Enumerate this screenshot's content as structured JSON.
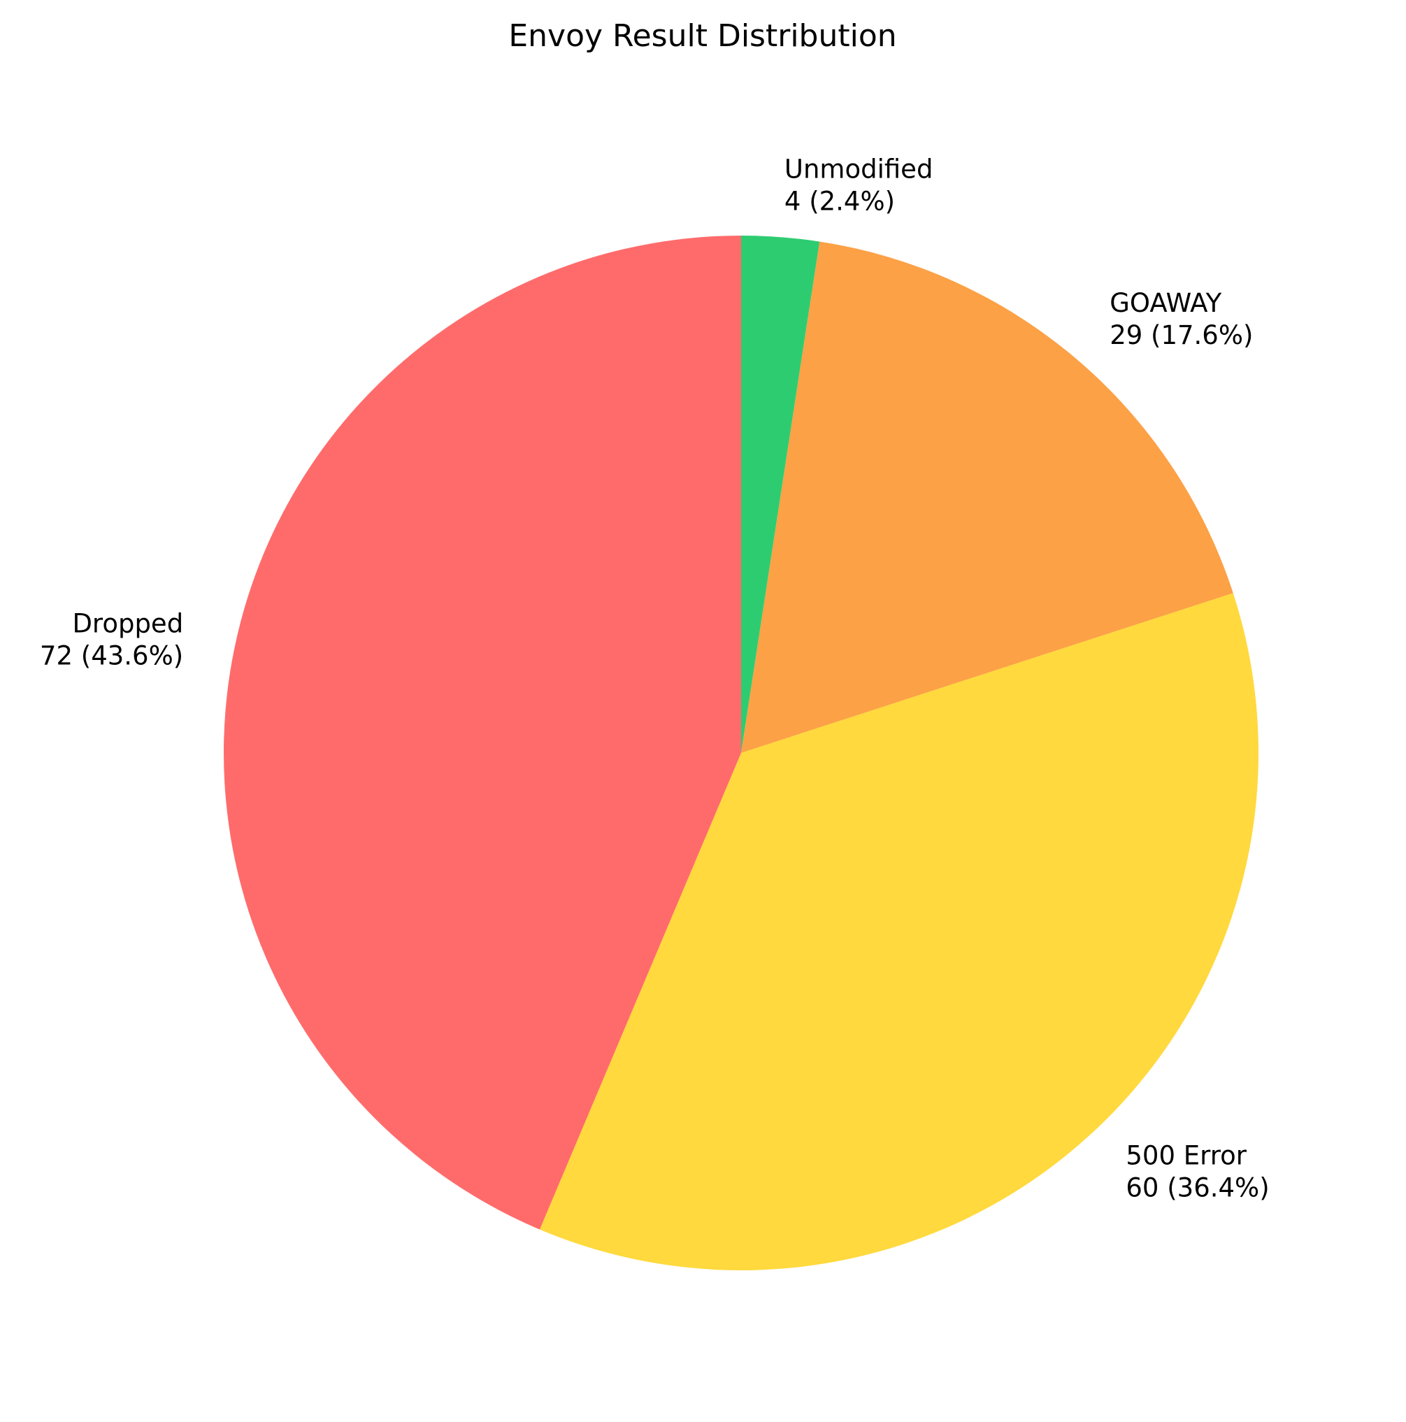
{
  "chart_data": {
    "type": "pie",
    "title": "Envoy Result Distribution",
    "start_angle_deg": 90,
    "direction": "clockwise",
    "slices": [
      {
        "name": "Unmodified",
        "value": 4,
        "percent": "2.4%",
        "label_value": "4 (2.4%)",
        "color": "#2ecc71"
      },
      {
        "name": "GOAWAY",
        "value": 29,
        "percent": "17.6%",
        "label_value": "29 (17.6%)",
        "color": "#fca146"
      },
      {
        "name": "500 Error",
        "value": 60,
        "percent": "36.4%",
        "label_value": "60 (36.4%)",
        "color": "#ffd93d"
      },
      {
        "name": "Dropped",
        "value": 72,
        "percent": "43.6%",
        "label_value": "72 (43.6%)",
        "color": "#ff6b6b"
      }
    ]
  }
}
